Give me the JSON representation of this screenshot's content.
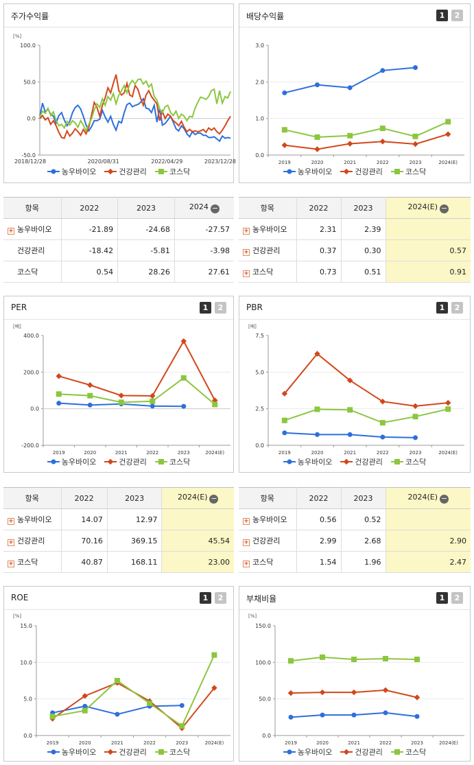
{
  "colors": {
    "s1": "#2c6fdc",
    "s2": "#d2471b",
    "s3": "#8cc63f",
    "highlight": "#fcf7c6"
  },
  "tabs": {
    "one": "1",
    "two": "2"
  },
  "legend": [
    "농우바이오",
    "건강관리",
    "코스닥"
  ],
  "stock": {
    "title": "주가수익률",
    "table": {
      "header": "항목",
      "years": [
        "2022",
        "2023",
        "2024"
      ],
      "rows": [
        {
          "label": "농우바이오",
          "plus": true,
          "values": [
            "-21.89",
            "-24.68",
            "-27.57"
          ]
        },
        {
          "label": "건강관리",
          "plus": false,
          "values": [
            "-18.42",
            "-5.81",
            "-3.98"
          ]
        },
        {
          "label": "코스닥",
          "plus": false,
          "values": [
            "0.54",
            "28.26",
            "27.61"
          ]
        }
      ]
    }
  },
  "dividend": {
    "title": "배당수익률",
    "table": {
      "header": "항목",
      "years": [
        "2022",
        "2023",
        "2024(E)"
      ],
      "rows": [
        {
          "label": "농우바이오",
          "plus": true,
          "values": [
            "2.31",
            "2.39",
            ""
          ]
        },
        {
          "label": "건강관리",
          "plus": true,
          "values": [
            "0.37",
            "0.30",
            "0.57"
          ]
        },
        {
          "label": "코스닥",
          "plus": true,
          "values": [
            "0.73",
            "0.51",
            "0.91"
          ]
        }
      ]
    }
  },
  "per": {
    "title": "PER",
    "table": {
      "header": "항목",
      "years": [
        "2022",
        "2023",
        "2024(E)"
      ],
      "rows": [
        {
          "label": "농우바이오",
          "plus": true,
          "values": [
            "14.07",
            "12.97",
            ""
          ]
        },
        {
          "label": "건강관리",
          "plus": true,
          "values": [
            "70.16",
            "369.15",
            "45.54"
          ]
        },
        {
          "label": "코스닥",
          "plus": true,
          "values": [
            "40.87",
            "168.11",
            "23.00"
          ]
        }
      ]
    }
  },
  "pbr": {
    "title": "PBR",
    "table": {
      "header": "항목",
      "years": [
        "2022",
        "2023",
        "2024(E)"
      ],
      "rows": [
        {
          "label": "농우바이오",
          "plus": true,
          "values": [
            "0.56",
            "0.52",
            ""
          ]
        },
        {
          "label": "건강관리",
          "plus": true,
          "values": [
            "2.99",
            "2.68",
            "2.90"
          ]
        },
        {
          "label": "코스닥",
          "plus": true,
          "values": [
            "1.54",
            "1.96",
            "2.47"
          ]
        }
      ]
    }
  },
  "roe": {
    "title": "ROE"
  },
  "debt": {
    "title": "부채비율"
  },
  "chart_data": [
    {
      "id": "stock",
      "type": "line",
      "unit": "[%]",
      "ylim": [
        -50,
        100
      ],
      "yticks": [
        "100.0",
        "50.0",
        "0.0",
        "-50.0"
      ],
      "xticks": [
        "2018/12/28",
        "2020/08/31",
        "2022/04/29",
        "2023/12/28"
      ],
      "series": [
        {
          "name": "농우바이오",
          "values": [
            3,
            21,
            9,
            13,
            6,
            3,
            -6,
            4,
            8,
            -2,
            -10,
            -4,
            8,
            15,
            18,
            13,
            3,
            -9,
            -17,
            -11,
            -3,
            -3,
            -1,
            11,
            2,
            -5,
            3,
            -8,
            -16,
            -4,
            -6,
            8,
            19,
            21,
            16,
            18,
            19,
            22,
            27,
            14,
            13,
            8,
            18,
            -5,
            14,
            -9,
            -7,
            -2,
            3,
            -5,
            -14,
            -17,
            -10,
            -14,
            -21,
            -25,
            -18,
            -22,
            -20,
            -20,
            -23,
            -23,
            -26,
            -26,
            -25,
            -28,
            -31,
            -24,
            -27,
            -26,
            -27
          ]
        },
        {
          "name": "건강관리",
          "values": [
            0,
            4,
            -2,
            1,
            -8,
            -3,
            -10,
            -19,
            -26,
            -27,
            -17,
            -24,
            -20,
            -14,
            -18,
            -23,
            -15,
            -21,
            -12,
            5,
            22,
            15,
            3,
            18,
            28,
            42,
            35,
            48,
            60,
            38,
            32,
            35,
            48,
            32,
            30,
            45,
            40,
            28,
            18,
            32,
            38,
            30,
            25,
            20,
            -3,
            10,
            0,
            6,
            3,
            -3,
            -6,
            -10,
            -4,
            -12,
            -18,
            -15,
            -18,
            -17,
            -18,
            -17,
            -15,
            -19,
            -13,
            -16,
            -13,
            -18,
            -21,
            -16,
            -10,
            -3,
            3
          ]
        },
        {
          "name": "코스닥",
          "values": [
            2,
            10,
            7,
            14,
            4,
            9,
            -3,
            -10,
            -8,
            -13,
            -4,
            -9,
            -3,
            -6,
            -12,
            -3,
            -9,
            -17,
            -8,
            0,
            12,
            20,
            15,
            27,
            18,
            30,
            25,
            34,
            20,
            32,
            38,
            45,
            35,
            47,
            52,
            47,
            53,
            54,
            47,
            51,
            43,
            47,
            30,
            25,
            13,
            8,
            16,
            18,
            8,
            4,
            10,
            0,
            6,
            3,
            -3,
            3,
            2,
            14,
            22,
            29,
            28,
            26,
            30,
            38,
            40,
            20,
            38,
            21,
            30,
            28,
            37
          ]
        }
      ]
    },
    {
      "id": "dividend",
      "type": "line",
      "unit": "",
      "ylim": [
        0,
        3
      ],
      "yticks": [
        "3.0",
        "2.0",
        "1.0",
        "0.0"
      ],
      "categories": [
        "2019",
        "2020",
        "2021",
        "2022",
        "2023",
        "2024(E)"
      ],
      "series": [
        {
          "name": "농우바이오",
          "values": [
            1.7,
            1.92,
            1.84,
            2.31,
            2.39,
            null
          ]
        },
        {
          "name": "건강관리",
          "values": [
            0.27,
            0.16,
            0.31,
            0.37,
            0.3,
            0.57
          ]
        },
        {
          "name": "코스닥",
          "values": [
            0.69,
            0.49,
            0.53,
            0.73,
            0.51,
            0.91
          ]
        }
      ]
    },
    {
      "id": "per",
      "type": "line",
      "unit": "[배]",
      "ylim": [
        -200,
        400
      ],
      "yticks": [
        "400.0",
        "200.0",
        "0.0",
        "-200.0"
      ],
      "categories": [
        "2019",
        "2020",
        "2021",
        "2022",
        "2023",
        "2024(E)"
      ],
      "series": [
        {
          "name": "농우바이오",
          "values": [
            30,
            20,
            26,
            14.07,
            12.97,
            null
          ]
        },
        {
          "name": "건강관리",
          "values": [
            178,
            129,
            72,
            70.16,
            369.15,
            45.54
          ]
        },
        {
          "name": "코스닥",
          "values": [
            80,
            71,
            35,
            40.87,
            168.11,
            23.0
          ]
        }
      ]
    },
    {
      "id": "pbr",
      "type": "line",
      "unit": "[배]",
      "ylim": [
        0,
        7.5
      ],
      "yticks": [
        "7.5",
        "5.0",
        "2.5",
        "0.0"
      ],
      "categories": [
        "2019",
        "2020",
        "2021",
        "2022",
        "2023",
        "2024(E)"
      ],
      "series": [
        {
          "name": "농우바이오",
          "values": [
            0.85,
            0.73,
            0.73,
            0.56,
            0.52,
            null
          ]
        },
        {
          "name": "건강관리",
          "values": [
            3.53,
            6.25,
            4.43,
            2.99,
            2.68,
            2.9
          ]
        },
        {
          "name": "코스닥",
          "values": [
            1.7,
            2.46,
            2.42,
            1.54,
            1.96,
            2.47
          ]
        }
      ]
    },
    {
      "id": "roe",
      "type": "line",
      "unit": "[%]",
      "ylim": [
        0,
        15
      ],
      "yticks": [
        "15.0",
        "10.0",
        "5.0",
        "0.0"
      ],
      "categories": [
        "2019",
        "2020",
        "2021",
        "2022",
        "2023",
        "2024(E)"
      ],
      "series": [
        {
          "name": "농우바이오",
          "values": [
            3.1,
            4.0,
            2.9,
            4.0,
            4.1,
            null
          ]
        },
        {
          "name": "건강관리",
          "values": [
            2.3,
            5.4,
            7.2,
            4.7,
            1.0,
            6.5
          ]
        },
        {
          "name": "코스닥",
          "values": [
            2.6,
            3.4,
            7.5,
            4.4,
            1.3,
            11.0
          ]
        }
      ]
    },
    {
      "id": "debt",
      "type": "line",
      "unit": "[%]",
      "ylim": [
        0,
        150
      ],
      "yticks": [
        "150.0",
        "100.0",
        "50.0",
        "0.0"
      ],
      "categories": [
        "2019",
        "2020",
        "2021",
        "2022",
        "2023",
        "2024(E)"
      ],
      "series": [
        {
          "name": "농우바이오",
          "values": [
            25,
            28,
            28,
            31,
            26,
            null
          ]
        },
        {
          "name": "건강관리",
          "values": [
            58,
            59,
            59,
            62,
            52,
            null
          ]
        },
        {
          "name": "코스닥",
          "values": [
            102,
            107,
            104,
            105,
            104,
            null
          ]
        }
      ]
    }
  ]
}
